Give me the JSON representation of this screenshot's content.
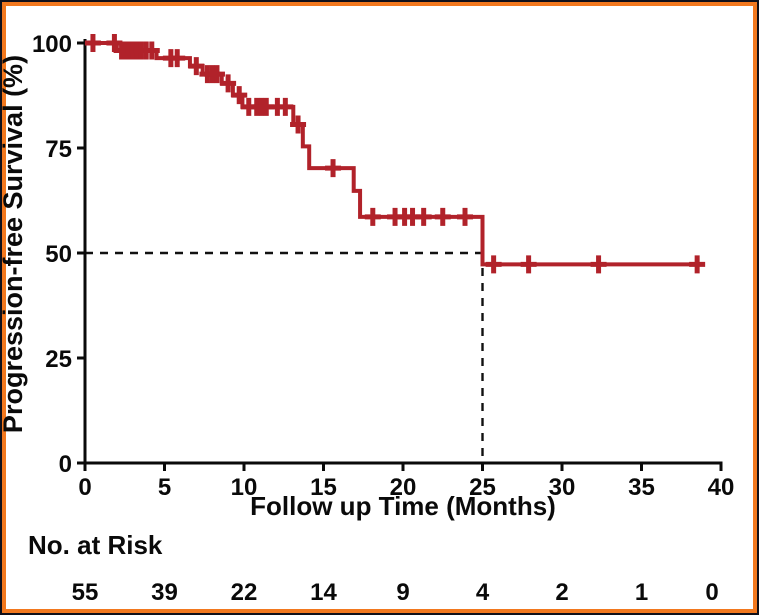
{
  "figure": {
    "background": "#ffffff",
    "outer_border_color": "#10101a",
    "inner_border_color": "#f2781e"
  },
  "chart_data": {
    "type": "line",
    "subtype": "kaplan-meier-step",
    "title": "",
    "xlabel": "Follow up Time (Months)",
    "ylabel": "Progression-free Survival (%)",
    "xlim": [
      0,
      40
    ],
    "ylim": [
      0,
      100
    ],
    "x_ticks": [
      0,
      5,
      10,
      15,
      20,
      25,
      30,
      35,
      40
    ],
    "y_ticks": [
      0,
      25,
      50,
      75,
      100
    ],
    "grid": false,
    "legend": false,
    "curve_color": "#b1222a",
    "axis_color": "#0a0a0a",
    "dashed_guide_color": "#111111",
    "median_guide": {
      "x": 25,
      "y": 50,
      "style": "dashed"
    },
    "curve_end_time": 38.6,
    "steps": [
      [
        0,
        100
      ],
      [
        2.0,
        98.2
      ],
      [
        4.5,
        96.4
      ],
      [
        6.6,
        94.5
      ],
      [
        7.4,
        92.6
      ],
      [
        8.6,
        90.4
      ],
      [
        9.3,
        87.6
      ],
      [
        9.9,
        84.8
      ],
      [
        13.1,
        80.6
      ],
      [
        13.7,
        75.4
      ],
      [
        14.1,
        70.2
      ],
      [
        16.9,
        64.8
      ],
      [
        17.3,
        58.6
      ],
      [
        25.0,
        47.3
      ]
    ],
    "censor_marks": [
      [
        0.5,
        100
      ],
      [
        1.85,
        100
      ],
      [
        2.3,
        98.2
      ],
      [
        2.6,
        98.2
      ],
      [
        2.85,
        98.2
      ],
      [
        3.05,
        98.2
      ],
      [
        3.3,
        98.2
      ],
      [
        3.55,
        98.2
      ],
      [
        3.85,
        98.2
      ],
      [
        4.2,
        98.2
      ],
      [
        5.4,
        96.4
      ],
      [
        5.8,
        96.4
      ],
      [
        7.0,
        94.5
      ],
      [
        7.7,
        92.6
      ],
      [
        8.0,
        92.6
      ],
      [
        8.3,
        92.6
      ],
      [
        9.0,
        90.4
      ],
      [
        9.7,
        87.6
      ],
      [
        10.3,
        84.8
      ],
      [
        10.8,
        84.8
      ],
      [
        11.1,
        84.8
      ],
      [
        11.4,
        84.8
      ],
      [
        12.1,
        84.8
      ],
      [
        12.6,
        84.8
      ],
      [
        13.4,
        80.6
      ],
      [
        15.6,
        70.2
      ],
      [
        18.1,
        58.6
      ],
      [
        19.5,
        58.6
      ],
      [
        20.1,
        58.6
      ],
      [
        20.6,
        58.6
      ],
      [
        21.3,
        58.6
      ],
      [
        22.5,
        58.6
      ],
      [
        23.9,
        58.6
      ],
      [
        25.7,
        47.3
      ],
      [
        27.9,
        47.3
      ],
      [
        32.3,
        47.3
      ],
      [
        38.5,
        47.3
      ]
    ],
    "at_risk": {
      "label": "No. at Risk",
      "times": [
        0,
        5,
        10,
        15,
        20,
        25,
        30,
        35,
        40
      ],
      "counts": [
        55,
        39,
        22,
        14,
        9,
        4,
        2,
        1,
        0
      ]
    }
  }
}
